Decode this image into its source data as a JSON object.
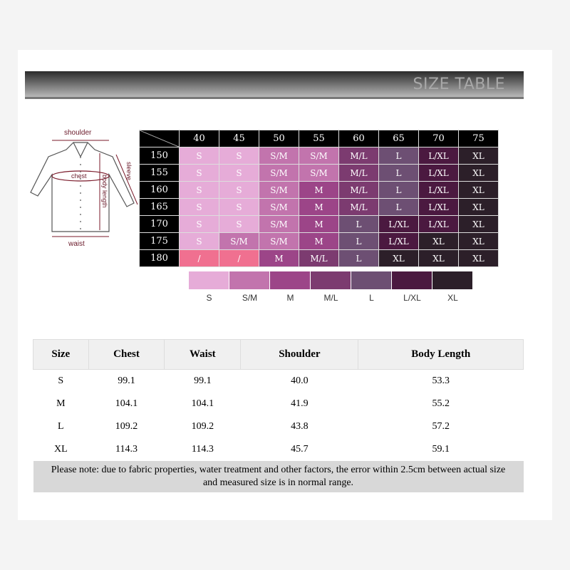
{
  "banner_title": "SIZE TABLE",
  "diagram_labels": {
    "shoulder": "shoulder",
    "chest": "chest",
    "sleeve": "sleeve",
    "body_length": "body length",
    "waist": "waist"
  },
  "grid": {
    "columns": [
      "40",
      "45",
      "50",
      "55",
      "60",
      "65",
      "70",
      "75"
    ],
    "rows": [
      {
        "height": "150",
        "cells": [
          "S",
          "S",
          "S/M",
          "S/M",
          "M/L",
          "L",
          "L/XL",
          "XL"
        ]
      },
      {
        "height": "155",
        "cells": [
          "S",
          "S",
          "S/M",
          "S/M",
          "M/L",
          "L",
          "L/XL",
          "XL"
        ]
      },
      {
        "height": "160",
        "cells": [
          "S",
          "S",
          "S/M",
          "M",
          "M/L",
          "L",
          "L/XL",
          "XL"
        ]
      },
      {
        "height": "165",
        "cells": [
          "S",
          "S",
          "S/M",
          "M",
          "M/L",
          "L",
          "L/XL",
          "XL"
        ]
      },
      {
        "height": "170",
        "cells": [
          "S",
          "S",
          "S/M",
          "M",
          "L",
          "L/XL",
          "L/XL",
          "XL"
        ]
      },
      {
        "height": "175",
        "cells": [
          "S",
          "S/M",
          "S/M",
          "M",
          "L",
          "L/XL",
          "XL",
          "XL"
        ]
      },
      {
        "height": "180",
        "cells": [
          "/",
          "/",
          "M",
          "M/L",
          "L",
          "XL",
          "XL",
          "XL"
        ]
      }
    ]
  },
  "size_colors": {
    "S": "#e6acd8",
    "S/M": "#c274ad",
    "M": "#9c4588",
    "M/L": "#7c3b70",
    "L": "#6d4f73",
    "L/XL": "#4b1940",
    "XL": "#2c1f29",
    "/": "#f07090"
  },
  "legend": [
    "S",
    "S/M",
    "M",
    "M/L",
    "L",
    "L/XL",
    "XL"
  ],
  "spec_table": {
    "headers": [
      "Size",
      "Chest",
      "Waist",
      "Shoulder",
      "Body Length"
    ],
    "rows": [
      [
        "S",
        "99.1",
        "99.1",
        "40.0",
        "53.3"
      ],
      [
        "M",
        "104.1",
        "104.1",
        "41.9",
        "55.2"
      ],
      [
        "L",
        "109.2",
        "109.2",
        "43.8",
        "57.2"
      ],
      [
        "XL",
        "114.3",
        "114.3",
        "45.7",
        "59.1"
      ]
    ],
    "note_line1": "Please note: due to fabric properties, water treatment and other factors, the error within 2.5cm between actual size",
    "note_line2": "and measured size is in normal range."
  }
}
